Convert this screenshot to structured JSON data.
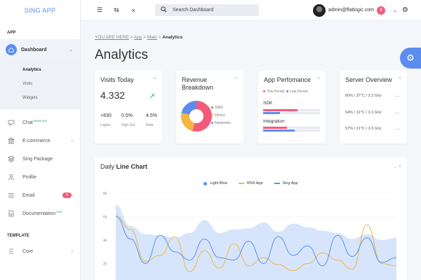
{
  "app": {
    "brand": "SING APP"
  },
  "sidebar": {
    "section_app": "APP",
    "dashboard": {
      "label": "Dashboard"
    },
    "submenu": [
      "Analytics",
      "Visits",
      "Widgets"
    ],
    "items": [
      {
        "label": "Chat",
        "tag": "awesome"
      },
      {
        "label": "E-commerce"
      },
      {
        "label": "Sing Package"
      },
      {
        "label": "Profile"
      },
      {
        "label": "Email",
        "badge": "9"
      },
      {
        "label": "Documentation",
        "tag": "new"
      }
    ],
    "section_template": "TEMPLATE",
    "core": {
      "label": "Core"
    }
  },
  "topbar": {
    "search_placeholder": "Search Dashboard",
    "user_email": "admin@flatlogic.com",
    "notifications": "9"
  },
  "breadcrumb": {
    "prefix": "YOU ARE HERE",
    "sep": ">",
    "app": "App",
    "main": "Main",
    "current": "Analytics"
  },
  "page": {
    "title": "Analytics"
  },
  "visits": {
    "title": "Visits Today",
    "value": "4.332",
    "stats": [
      {
        "value": "+830",
        "label": "Logins"
      },
      {
        "value": "0.5%",
        "label": "Sign Out"
      },
      {
        "value": "4.5%",
        "label": "Rate"
      }
    ]
  },
  "revenue": {
    "title_line1": "Revenue",
    "title_line2": "Breakdown",
    "legend": [
      "SMX",
      "Direct",
      "Networks"
    ]
  },
  "performance": {
    "title": "App Perfomance",
    "legend_this": "This Period",
    "legend_last": "Last Period",
    "rows": [
      {
        "label": "SDK",
        "this": 0.6,
        "last": 0.3
      },
      {
        "label": "Integration",
        "this": 0.42,
        "last": 0.55
      }
    ]
  },
  "server": {
    "title": "Server Overview",
    "rows": [
      "60% / 37°C / 3.3 Ghz",
      "54% / 31°C / 3.3 Ghz",
      "57% / 21°C / 3.3 Ghz"
    ]
  },
  "daily_chart": {
    "title_prefix": "Daily",
    "title_bold": "Line Chart",
    "close": "⌄ ×"
  },
  "colors": {
    "accent": "#5b8def",
    "pink": "#f45a79",
    "yellow": "#f1b73e",
    "green": "#2bb673",
    "area": "#cfe0fb"
  },
  "chart_data": {
    "type": "line",
    "title": "Daily Line Chart",
    "yticks": [
      "8k",
      "6k",
      "4k",
      "2k"
    ],
    "ylim": [
      0,
      8
    ],
    "series": [
      {
        "name": "Light Blue",
        "kind": "area",
        "values": [
          7.0,
          5.2,
          4.5,
          4.4,
          4.2,
          4.6,
          5.7,
          4.6,
          4.9,
          5.0,
          5.5,
          4.7,
          5.4,
          5.1,
          4.8,
          4.6,
          4.1,
          4.5,
          4.0,
          4.2
        ]
      },
      {
        "name": "RNS App",
        "kind": "line",
        "values": [
          6.1,
          4.9,
          2.2,
          2.7,
          4.3,
          1.3,
          3.1,
          1.6,
          3.7,
          1.8,
          2.5,
          1.9,
          1.4,
          2.0,
          2.9,
          2.3,
          1.5,
          5.3,
          2.0,
          1.8
        ]
      },
      {
        "name": "Sing App",
        "kind": "line",
        "values": [
          6.0,
          4.1,
          2.0,
          4.4,
          3.0,
          2.3,
          4.1,
          2.5,
          2.3,
          3.9,
          2.0,
          4.3,
          2.7,
          3.5,
          1.8,
          4.4,
          2.6,
          4.2,
          2.1,
          2.5
        ]
      }
    ]
  }
}
